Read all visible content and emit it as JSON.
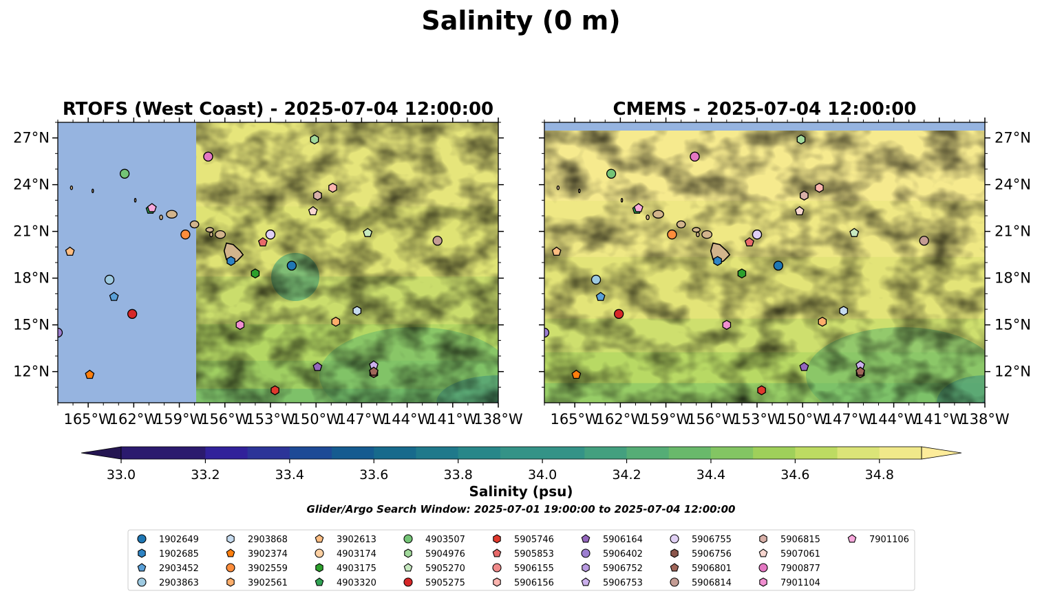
{
  "figure": {
    "title": "Salinity (0 m)",
    "search_window": "Glider/Argo Search Window: 2025-07-01 19:00:00 to 2025-07-04 12:00:00"
  },
  "colors": {
    "land": "#d2b48c",
    "no_data": "#96b4e0",
    "cmap": [
      "#2b1a6e",
      "#31219a",
      "#2c3498",
      "#1d4a96",
      "#155b90",
      "#176a8c",
      "#1f798b",
      "#288789",
      "#349387",
      "#43a07f",
      "#55ad76",
      "#69b96b",
      "#83c563",
      "#9fd05a",
      "#bddb62",
      "#dbe478",
      "#f0e98a"
    ],
    "over": "#fdec9a",
    "under": "#241551"
  },
  "chart_data": [
    {
      "type": "heatmap",
      "title": "RTOFS (West Coast) - 2025-07-04 12:00:00",
      "domain_lon": [
        -167,
        -138
      ],
      "domain_lat": [
        10,
        28
      ],
      "lon_ticks": [
        "165°W",
        "162°W",
        "159°W",
        "156°W",
        "153°W",
        "150°W",
        "147°W",
        "144°W",
        "141°W",
        "138°W"
      ],
      "lat_ticks": [
        "12°N",
        "15°N",
        "18°N",
        "21°N",
        "24°N",
        "27°N"
      ],
      "no_data_west_of_lon": -158
    },
    {
      "type": "heatmap",
      "title": "CMEMS - 2025-07-04 12:00:00",
      "domain_lon": [
        -167,
        -138
      ],
      "domain_lat": [
        10,
        28
      ],
      "lon_ticks": [
        "165°W",
        "162°W",
        "159°W",
        "156°W",
        "153°W",
        "150°W",
        "147°W",
        "144°W",
        "141°W",
        "138°W"
      ],
      "lat_ticks": [
        "12°N",
        "15°N",
        "18°N",
        "21°N",
        "24°N",
        "27°N"
      ],
      "no_data_north_of_lat": 27.5
    }
  ],
  "colorbar": {
    "label": "Salinity (psu)",
    "min": 32.9,
    "max": 34.9,
    "step": 0.1,
    "ticks": [
      "33.0",
      "33.2",
      "33.4",
      "33.6",
      "33.8",
      "34.0",
      "34.2",
      "34.4",
      "34.6",
      "34.8"
    ],
    "tick_values": [
      33.0,
      33.2,
      33.4,
      33.6,
      33.8,
      34.0,
      34.2,
      34.4,
      34.6,
      34.8
    ]
  },
  "floats": [
    {
      "id": "1902649",
      "marker": "circle",
      "color": "#1f77b4",
      "lon": -151.6,
      "lat": 18.8
    },
    {
      "id": "1902685",
      "marker": "hexagon",
      "color": "#2f84c4",
      "lon": -155.6,
      "lat": 19.1
    },
    {
      "id": "2903452",
      "marker": "pentagon",
      "color": "#5aa0d8",
      "lon": -163.3,
      "lat": 16.8
    },
    {
      "id": "2903863",
      "marker": "circle",
      "color": "#9ecae1",
      "lon": -163.6,
      "lat": 17.9
    },
    {
      "id": "2903868",
      "marker": "hexagon",
      "color": "#c6dbef",
      "lon": -147.3,
      "lat": 15.9
    },
    {
      "id": "3902374",
      "marker": "pentagon",
      "color": "#ff7f0e",
      "lon": -164.9,
      "lat": 11.8
    },
    {
      "id": "3902559",
      "marker": "circle",
      "color": "#fd8d3c",
      "lon": -158.6,
      "lat": 20.8
    },
    {
      "id": "3902561",
      "marker": "hexagon",
      "color": "#fdae6b",
      "lon": -148.7,
      "lat": 15.2
    },
    {
      "id": "3902613",
      "marker": "pentagon",
      "color": "#fdbd82",
      "lon": -166.2,
      "lat": 19.7
    },
    {
      "id": "4903174",
      "marker": "circle",
      "color": "#fdd0a2",
      "lon": -153.0,
      "lat": 20.8
    },
    {
      "id": "4903175",
      "marker": "hexagon",
      "color": "#2ca02c",
      "lon": -154.0,
      "lat": 18.3
    },
    {
      "id": "4903320",
      "marker": "pentagon",
      "color": "#31a354",
      "lon": -160.9,
      "lat": 22.4
    },
    {
      "id": "4903507",
      "marker": "circle",
      "color": "#74c476",
      "lon": -162.6,
      "lat": 24.7
    },
    {
      "id": "5904976",
      "marker": "hexagon",
      "color": "#a1d99b",
      "lon": -150.1,
      "lat": 26.9
    },
    {
      "id": "5905270",
      "marker": "pentagon",
      "color": "#c7e9c0",
      "lon": -146.6,
      "lat": 20.9
    },
    {
      "id": "5905275",
      "marker": "circle",
      "color": "#d62728",
      "lon": -162.1,
      "lat": 15.7
    },
    {
      "id": "5905746",
      "marker": "hexagon",
      "color": "#e03a2e",
      "lon": -152.7,
      "lat": 10.8
    },
    {
      "id": "5905853",
      "marker": "pentagon",
      "color": "#e86a6a",
      "lon": -153.5,
      "lat": 20.3
    },
    {
      "id": "5906155",
      "marker": "circle",
      "color": "#f08a8a",
      "lon": -157.1,
      "lat": 25.8
    },
    {
      "id": "5906156",
      "marker": "hexagon",
      "color": "#fbb4ae",
      "lon": -148.9,
      "lat": 23.8
    },
    {
      "id": "5906164",
      "marker": "pentagon",
      "color": "#9467bd",
      "lon": -149.9,
      "lat": 12.3
    },
    {
      "id": "5906402",
      "marker": "circle",
      "color": "#9c7ed0",
      "lon": -167.0,
      "lat": 14.5
    },
    {
      "id": "5906752",
      "marker": "hexagon",
      "color": "#b89ae0",
      "lon": -149.9,
      "lat": 23.3
    },
    {
      "id": "5906753",
      "marker": "pentagon",
      "color": "#cbb0ec",
      "lon": -146.2,
      "lat": 12.4
    },
    {
      "id": "5906755",
      "marker": "circle",
      "color": "#e0d0f4",
      "lon": -153.0,
      "lat": 20.8
    },
    {
      "id": "5906756",
      "marker": "hexagon",
      "color": "#8c564b",
      "lon": -146.2,
      "lat": 11.9
    },
    {
      "id": "5906801",
      "marker": "pentagon",
      "color": "#a0665a",
      "lon": -146.2,
      "lat": 12.0
    },
    {
      "id": "5906814",
      "marker": "circle",
      "color": "#c49c94",
      "lon": -142.0,
      "lat": 20.4
    },
    {
      "id": "5906815",
      "marker": "hexagon",
      "color": "#d8b0a8",
      "lon": -149.9,
      "lat": 23.3
    },
    {
      "id": "5907061",
      "marker": "pentagon",
      "color": "#f7d6cf",
      "lon": -150.2,
      "lat": 22.3
    },
    {
      "id": "7900877",
      "marker": "circle",
      "color": "#e377c2",
      "lon": -157.1,
      "lat": 25.8
    },
    {
      "id": "7901104",
      "marker": "hexagon",
      "color": "#f08fd0",
      "lon": -155.0,
      "lat": 15.0
    },
    {
      "id": "7901106",
      "marker": "pentagon",
      "color": "#f7a8dc",
      "lon": -160.8,
      "lat": 22.5
    }
  ]
}
